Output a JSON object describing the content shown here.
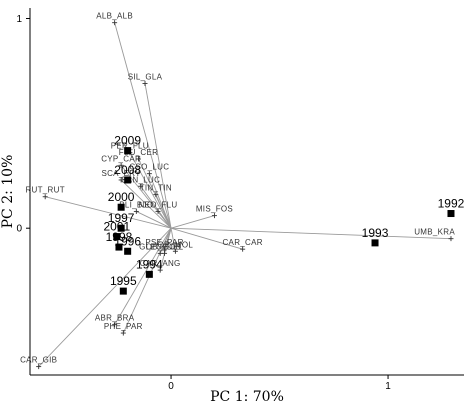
{
  "chart_data": {
    "type": "scatter",
    "xlabel": "PC 1: 70%",
    "ylabel": "PC 2: 10%",
    "xlim": [
      -0.65,
      1.35
    ],
    "ylim": [
      -0.7,
      1.05
    ],
    "x_ticks": [
      0,
      1
    ],
    "y_ticks": [
      0,
      1
    ],
    "grid": false,
    "series": [
      {
        "points": [
          {
            "label": "1992",
            "x": 1.29,
            "y": 0.07
          },
          {
            "label": "1993",
            "x": 0.94,
            "y": -0.07
          },
          {
            "label": "1994",
            "x": -0.1,
            "y": -0.22
          },
          {
            "label": "1995",
            "x": -0.22,
            "y": -0.3
          },
          {
            "label": "1996",
            "x": -0.2,
            "y": -0.11
          },
          {
            "label": "1997",
            "x": -0.23,
            "y": 0.0
          },
          {
            "label": "1998",
            "x": -0.24,
            "y": -0.09
          },
          {
            "label": "2000",
            "x": -0.23,
            "y": 0.1
          },
          {
            "label": "2001",
            "x": -0.25,
            "y": -0.04
          },
          {
            "label": "2008",
            "x": -0.2,
            "y": 0.23
          },
          {
            "label": "2009",
            "x": -0.2,
            "y": 0.37
          }
        ]
      },
      {
        "points": [
          {
            "label": "ALB_ALB",
            "x": -0.26,
            "y": 0.98
          },
          {
            "label": "SIL_GLA",
            "x": -0.12,
            "y": 0.69
          },
          {
            "label": "PER_FLU",
            "x": -0.19,
            "y": 0.36
          },
          {
            "label": "FBU_CER",
            "x": -0.15,
            "y": 0.33
          },
          {
            "label": "CYP_CAR",
            "x": -0.23,
            "y": 0.3
          },
          {
            "label": "CSO_LUC",
            "x": -0.1,
            "y": 0.26
          },
          {
            "label": "SCA_ERY",
            "x": -0.23,
            "y": 0.23
          },
          {
            "label": "SAN_LUC",
            "x": -0.14,
            "y": 0.2
          },
          {
            "label": "TIN_TIN",
            "x": -0.07,
            "y": 0.16
          },
          {
            "label": "RUT_RUT",
            "x": -0.58,
            "y": 0.15
          },
          {
            "label": "BLI_BJO",
            "x": -0.16,
            "y": 0.08
          },
          {
            "label": "NEO_FLU",
            "x": -0.06,
            "y": 0.08
          },
          {
            "label": "MIS_FOS",
            "x": 0.2,
            "y": 0.06
          },
          {
            "label": "UMB_KRA",
            "x": 1.29,
            "y": -0.05
          },
          {
            "label": "CAR_CAR",
            "x": 0.33,
            "y": -0.1
          },
          {
            "label": "PSE_PAR",
            "x": -0.03,
            "y": -0.1
          },
          {
            "label": "OR_MOL",
            "x": 0.02,
            "y": -0.11
          },
          {
            "label": "GOB_GOB",
            "x": -0.05,
            "y": -0.12
          },
          {
            "label": "LEU_DEL",
            "x": -0.03,
            "y": -0.12
          },
          {
            "label": "CAR_ANG",
            "x": -0.05,
            "y": -0.2
          },
          {
            "label": "ABR_BRA",
            "x": -0.26,
            "y": -0.46
          },
          {
            "label": "PHE_PAR",
            "x": -0.22,
            "y": -0.5
          },
          {
            "label": "CAR_GIB",
            "x": -0.61,
            "y": -0.66
          }
        ]
      }
    ]
  }
}
